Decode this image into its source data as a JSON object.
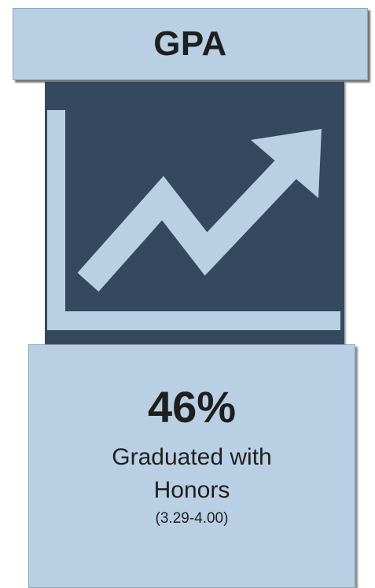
{
  "header": {
    "title": "GPA"
  },
  "icon": {
    "name": "trending-up-chart-icon"
  },
  "stat": {
    "value": "46%",
    "label_line1": "Graduated with",
    "label_line2": "Honors",
    "range": "(3.29-4.00)"
  },
  "colors": {
    "box_fill": "#b9cfe3",
    "panel_fill": "#34495f",
    "icon_fill": "#b9cfe3",
    "text": "#1f1f1f"
  }
}
